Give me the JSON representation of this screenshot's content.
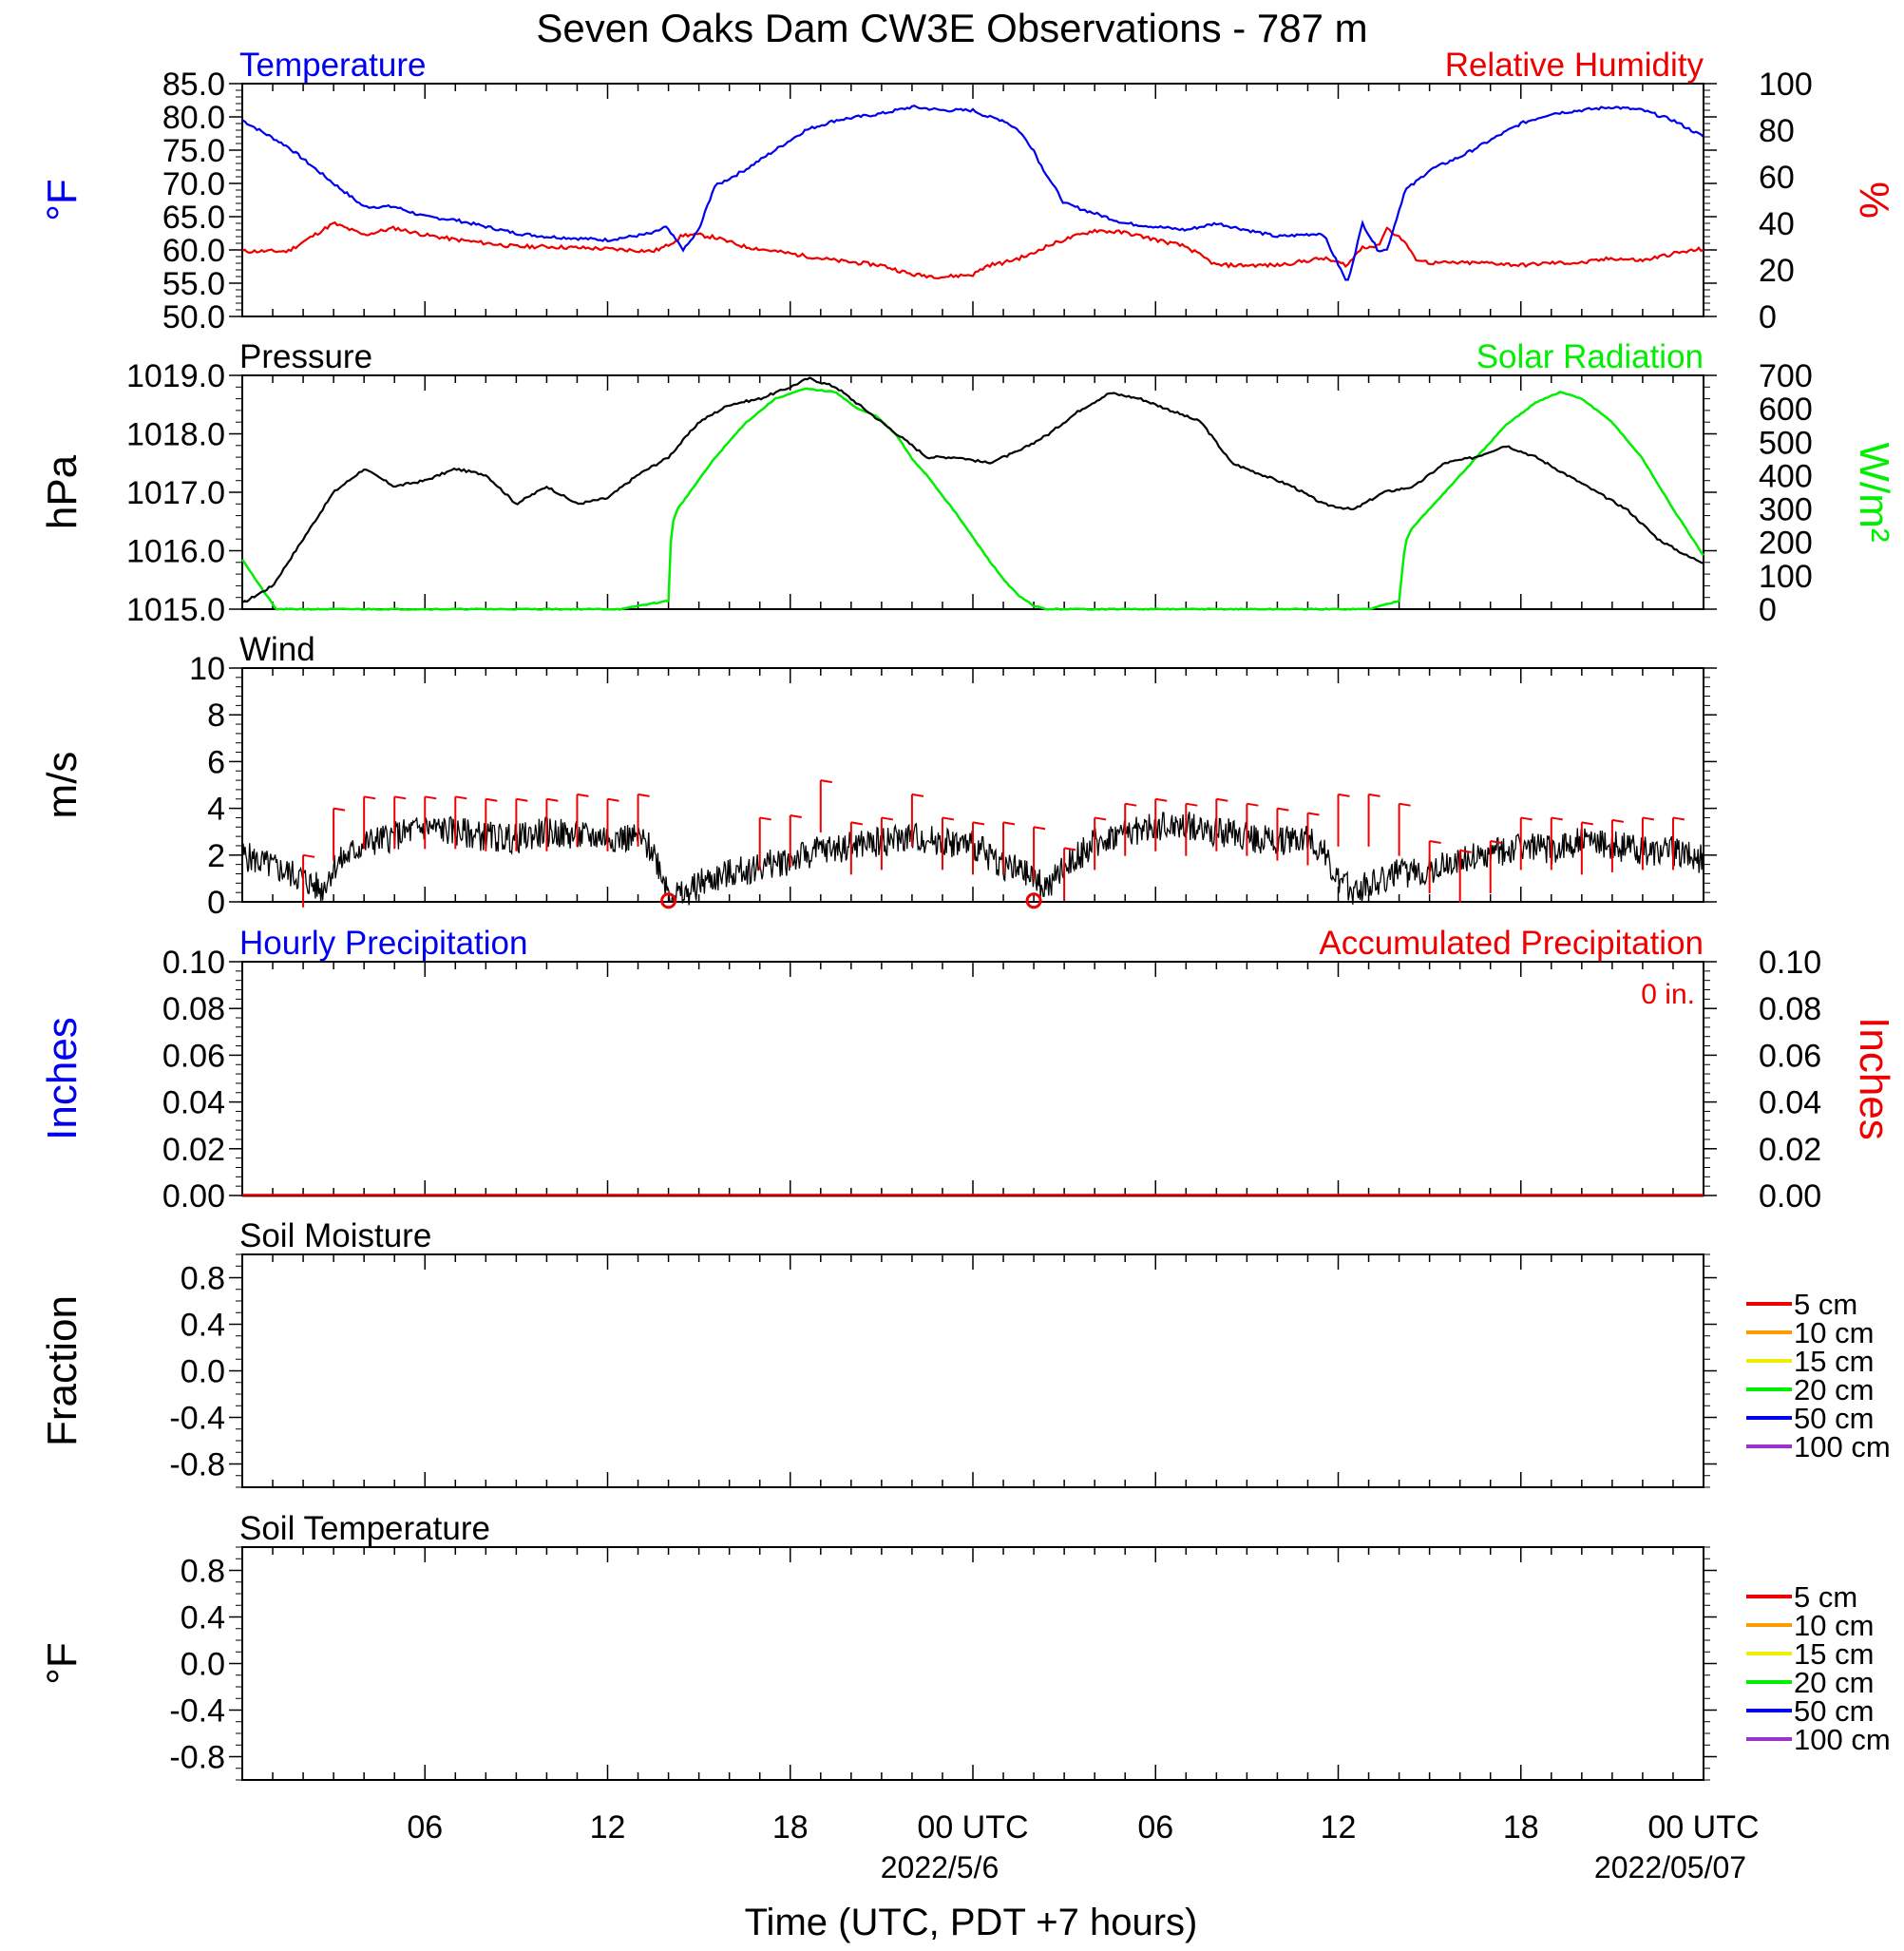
{
  "title": "Seven Oaks Dam CW3E Observations - 787 m",
  "colors": {
    "temperature": "#0000ee",
    "humidity": "#ee0000",
    "pressure": "#000000",
    "solar": "#00ee00",
    "wind": "#000000",
    "barb": "#ee0000",
    "black": "#000000"
  },
  "x_axis": {
    "label": "Time (UTC, PDT +7 hours)",
    "ticks": [
      "06",
      "12",
      "18",
      "00 UTC",
      "06",
      "12",
      "18",
      "00 UTC"
    ],
    "dates": [
      "2022/5/6",
      "2022/05/07"
    ]
  },
  "chart_data": [
    {
      "id": "temp_rh",
      "type": "line",
      "title_left": "Temperature",
      "title_right": "Relative Humidity",
      "ylabel": "°F",
      "ylabel_right": "%",
      "ylim": [
        50,
        85
      ],
      "ylim_right": [
        0,
        100
      ],
      "yticks": [
        "50.0",
        "55.0",
        "60.0",
        "65.0",
        "70.0",
        "75.0",
        "80.0",
        "85.0"
      ],
      "yticks_right": [
        "0",
        "20",
        "40",
        "60",
        "80",
        "100"
      ],
      "x_hours": [
        0,
        1.5,
        3,
        4,
        5,
        6,
        7,
        9,
        10,
        12,
        13.5,
        13.9,
        14.5,
        15,
        15.5,
        16.5,
        17.5,
        18.5,
        19.5,
        21,
        22,
        23,
        24,
        24.5,
        25,
        25.5,
        26,
        26.2,
        27,
        28,
        29,
        30,
        31,
        32,
        34,
        35.5,
        36.3,
        36.8,
        37.3,
        37.6,
        38.2,
        38.5,
        39,
        39.5,
        40,
        41,
        42,
        43,
        44,
        45,
        46,
        47,
        48
      ],
      "series": [
        {
          "name": "Temperature",
          "axis": "left",
          "values": [
            79.5,
            75.5,
            70,
            66.5,
            66.5,
            65,
            64.5,
            62.5,
            62,
            61.5,
            62.5,
            63.5,
            60,
            63,
            69.5,
            72,
            75,
            78,
            79.5,
            80.5,
            81.5,
            81,
            81,
            80,
            79.5,
            78,
            75,
            73,
            67,
            65.5,
            64,
            63.5,
            63,
            64,
            62,
            62.5,
            55,
            64,
            60,
            60,
            69,
            70,
            72,
            73,
            74,
            76.5,
            79,
            80.5,
            81,
            81.5,
            81,
            79.5,
            77
          ]
        },
        {
          "name": "Relative Humidity",
          "axis": "right",
          "values": [
            28,
            28,
            40,
            35,
            38,
            35,
            33,
            30,
            30,
            29,
            28,
            30,
            35,
            35,
            34,
            30,
            28,
            26,
            24,
            22,
            18,
            17,
            18,
            22,
            23,
            25,
            27,
            29,
            33,
            37,
            36,
            33,
            30,
            22,
            22,
            25,
            22,
            30,
            30,
            38,
            32,
            25,
            23,
            23,
            23,
            23,
            22,
            23,
            23,
            25,
            24,
            27,
            29
          ]
        }
      ]
    },
    {
      "id": "press_solar",
      "type": "line",
      "title_left": "Pressure",
      "title_right": "Solar Radiation",
      "ylabel": "hPa",
      "ylabel_right": "W/m²",
      "ylim": [
        1015,
        1019
      ],
      "ylim_right": [
        0,
        700
      ],
      "yticks": [
        "1015.0",
        "1016.0",
        "1017.0",
        "1018.0",
        "1019.0"
      ],
      "yticks_right": [
        "0",
        "100",
        "200",
        "300",
        "400",
        "500",
        "600",
        "700"
      ],
      "series": [
        {
          "name": "Pressure",
          "axis": "left",
          "x_hours": [
            0,
            1,
            2,
            3,
            4,
            5,
            6,
            7,
            8,
            9,
            10,
            11,
            12,
            13,
            14,
            15,
            16,
            17,
            18,
            18.6,
            19.5,
            20.5,
            21.5,
            22.5,
            23.5,
            24.5,
            25.5,
            26.5,
            27.5,
            28.5,
            29.5,
            30.5,
            31.5,
            32.5,
            33.5,
            34.5,
            35.5,
            36.5,
            37.5,
            38.5,
            39.5,
            40.5,
            41.5,
            42.5,
            43.5,
            44.5,
            45.5,
            46.5,
            47.5,
            48
          ],
          "values": [
            1015.1,
            1015.4,
            1016.2,
            1017.0,
            1017.4,
            1017.1,
            1017.2,
            1017.4,
            1017.3,
            1016.8,
            1017.1,
            1016.8,
            1016.9,
            1017.3,
            1017.6,
            1018.2,
            1018.5,
            1018.6,
            1018.8,
            1018.95,
            1018.8,
            1018.4,
            1018.0,
            1017.6,
            1017.6,
            1017.5,
            1017.7,
            1018.0,
            1018.4,
            1018.7,
            1018.6,
            1018.4,
            1018.2,
            1017.5,
            1017.3,
            1017.1,
            1016.8,
            1016.7,
            1017.0,
            1017.1,
            1017.5,
            1017.6,
            1017.8,
            1017.6,
            1017.3,
            1017.0,
            1016.7,
            1016.2,
            1015.9,
            1015.8
          ]
        },
        {
          "name": "Solar Radiation",
          "axis": "right",
          "x_hours": [
            0,
            0.5,
            1,
            1.1,
            12.5,
            13,
            14,
            14.1,
            14.3,
            15.5,
            16.5,
            17.5,
            18.5,
            19.5,
            20.2,
            20.8,
            21.5,
            22,
            22.5,
            23.5,
            24.5,
            25,
            25.5,
            26,
            26.4,
            37,
            38,
            38.2,
            38.4,
            39.5,
            40.5,
            41.5,
            42.5,
            43.3,
            44,
            45,
            46,
            47,
            48
          ],
          "values": [
            150,
            80,
            15,
            0,
            0,
            10,
            25,
            250,
            300,
            450,
            555,
            630,
            660,
            650,
            600,
            580,
            520,
            450,
            400,
            280,
            150,
            90,
            40,
            10,
            0,
            0,
            25,
            200,
            240,
            350,
            450,
            550,
            620,
            650,
            630,
            560,
            450,
            300,
            160
          ]
        }
      ]
    },
    {
      "id": "wind",
      "type": "line",
      "title_left": "Wind",
      "ylabel": "m/s",
      "ylim": [
        0,
        10
      ],
      "yticks": [
        "0",
        "2",
        "4",
        "6",
        "8",
        "10"
      ],
      "x_hours": [
        0,
        1,
        2,
        2.6,
        3,
        4,
        5,
        6,
        7,
        8,
        9,
        10,
        11,
        12,
        13,
        13.5,
        14,
        14.5,
        15,
        16,
        17,
        18,
        19,
        20,
        21,
        22,
        23,
        24,
        25,
        26,
        26.5,
        27,
        28,
        29,
        30,
        31,
        32,
        33,
        34,
        35,
        35.5,
        36,
        36.5,
        37,
        38,
        39,
        40,
        41,
        42,
        43,
        44,
        45,
        46,
        47,
        48
      ],
      "series": [
        {
          "name": "Wind",
          "values": [
            2,
            1.5,
            1,
            0.5,
            1.5,
            2.5,
            2.8,
            3.2,
            3,
            2.8,
            2.7,
            3,
            2.8,
            2.8,
            2.7,
            2.2,
            0.5,
            0.2,
            0.8,
            1.2,
            1.5,
            1.8,
            2.2,
            2.4,
            2.6,
            2.8,
            2.6,
            2.4,
            1.6,
            1,
            0.6,
            1.5,
            2.5,
            3,
            3.2,
            3.3,
            3,
            2.8,
            2.6,
            2.8,
            2.2,
            0.8,
            0.5,
            0.8,
            1.2,
            1.4,
            1.8,
            2,
            2.4,
            2.2,
            2.6,
            2.4,
            2.2,
            2.2,
            1.8
          ]
        }
      ],
      "barbs": {
        "x_hours": [
          2,
          3,
          4,
          5,
          6,
          7,
          8,
          9,
          10,
          11,
          12,
          13,
          17,
          18,
          19,
          20,
          21,
          22,
          23,
          24,
          25,
          26,
          27,
          28,
          29,
          30,
          31,
          32,
          33,
          34,
          35,
          36,
          37,
          38,
          39,
          40,
          41,
          42,
          43,
          44,
          45,
          46,
          47
        ],
        "speeds": [
          2,
          4,
          4.5,
          4.5,
          4.5,
          4.5,
          4.4,
          4.4,
          4.4,
          4.6,
          4.4,
          4.6,
          3.6,
          3.7,
          5.2,
          3.4,
          3.6,
          4.6,
          3.6,
          3.4,
          3.4,
          3.2,
          2.3,
          3.6,
          4.2,
          4.4,
          4.2,
          4.4,
          4.2,
          4,
          3.8,
          4.6,
          4.6,
          4.2,
          2.6,
          2.2,
          2.6,
          3.6,
          3.6,
          3.4,
          3.5,
          3.6,
          3.6
        ]
      },
      "calm_hours": [
        14,
        26
      ]
    },
    {
      "id": "precip",
      "type": "line",
      "title_left": "Hourly Precipitation",
      "title_right": "Accumulated Precipitation",
      "annotation": "0 in.",
      "ylabel": "Inches",
      "ylabel_right": "Inches",
      "ylim": [
        0,
        0.1
      ],
      "ylim_right": [
        0,
        0.1
      ],
      "yticks": [
        "0.00",
        "0.02",
        "0.04",
        "0.06",
        "0.08",
        "0.10"
      ],
      "yticks_right": [
        "0.00",
        "0.02",
        "0.04",
        "0.06",
        "0.08",
        "0.10"
      ],
      "x_hours": [
        0,
        48
      ],
      "series": [
        {
          "name": "Hourly Precipitation",
          "axis": "left",
          "values": [
            0,
            0
          ]
        },
        {
          "name": "Accumulated Precipitation",
          "axis": "right",
          "values": [
            0,
            0
          ]
        }
      ]
    },
    {
      "id": "soil_moist",
      "type": "line",
      "title_left": "Soil Moisture",
      "ylabel": "Fraction",
      "ylim": [
        -1,
        1
      ],
      "yticks": [
        "-0.8",
        "-0.4",
        "0.0",
        "0.4",
        "0.8"
      ],
      "legend": [
        {
          "label": "5 cm",
          "color": "#ee0000"
        },
        {
          "label": "10 cm",
          "color": "#ff9900"
        },
        {
          "label": "15 cm",
          "color": "#eeee00"
        },
        {
          "label": "20 cm",
          "color": "#00ee00"
        },
        {
          "label": "50 cm",
          "color": "#0000ee"
        },
        {
          "label": "100 cm",
          "color": "#9933cc"
        }
      ]
    },
    {
      "id": "soil_temp",
      "type": "line",
      "title_left": "Soil Temperature",
      "ylabel": "°F",
      "ylim": [
        -1,
        1
      ],
      "yticks": [
        "-0.8",
        "-0.4",
        "0.0",
        "0.4",
        "0.8"
      ],
      "legend": [
        {
          "label": "5 cm",
          "color": "#ee0000"
        },
        {
          "label": "10 cm",
          "color": "#ff9900"
        },
        {
          "label": "15 cm",
          "color": "#eeee00"
        },
        {
          "label": "20 cm",
          "color": "#00ee00"
        },
        {
          "label": "50 cm",
          "color": "#0000ee"
        },
        {
          "label": "100 cm",
          "color": "#9933cc"
        }
      ]
    }
  ]
}
